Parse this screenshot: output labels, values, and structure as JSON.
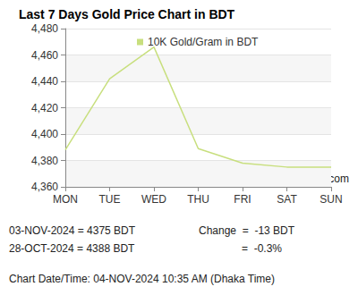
{
  "chart_data": {
    "type": "line",
    "title": "Last 7 Days Gold Price Chart in BDT",
    "categories": [
      "MON",
      "TUE",
      "WED",
      "THU",
      "FRI",
      "SAT",
      "SUN"
    ],
    "series": [
      {
        "name": "10K Gold/Gram in BDT",
        "color": "#c8df7e",
        "values": [
          4388,
          4442,
          4466,
          4389,
          4378,
          4375,
          4375
        ]
      }
    ],
    "ylim": [
      4360,
      4480
    ],
    "yticks": [
      4360,
      4380,
      4400,
      4420,
      4440,
      4460,
      4480
    ],
    "grid": true,
    "legend": "top",
    "annotations": [
      "GoldPriceZ.com",
      "03-NOV-2024 = 4375 BDT",
      "28-OCT-2024 = 4388 BDT",
      "Change  =  -13 BDT",
      "=  -0.3%",
      "Chart Date/Time: 04-NOV-2024 10:35 AM (Dhaka Time)"
    ]
  }
}
